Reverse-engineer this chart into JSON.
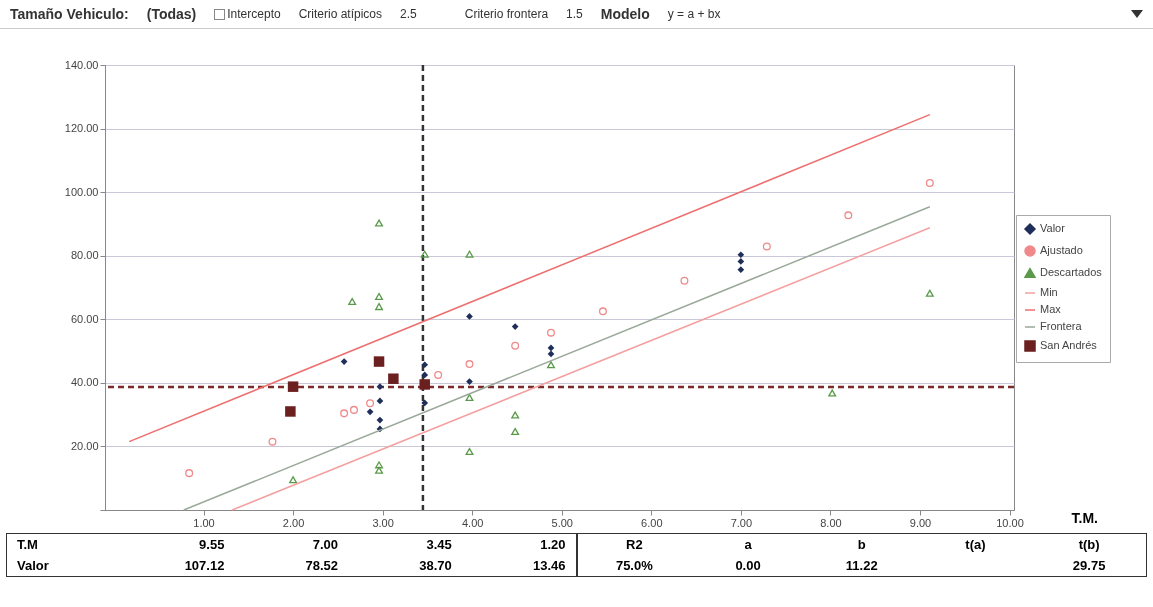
{
  "chart_data": {
    "type": "scatter",
    "annotations": [
      "Tamaño Vehiculo:",
      "(Todas)",
      "Intercepto",
      "Criterio atípicos",
      "2.5",
      "Criterio frontera",
      "1.5",
      "Modelo",
      "y = a + bx",
      "T.M",
      "9.55",
      "7.00",
      "3.45",
      "1.20",
      "Valor",
      "107.12",
      "78.52",
      "38.70",
      "13.46",
      "R2",
      "a",
      "b",
      "t(a)",
      "t(b)",
      "75.0%",
      "0.00",
      "11.22",
      "29.75"
    ],
    "xlabel": "T.M.",
    "xlim": [
      -0.1,
      10.05
    ],
    "xticks": [
      {
        "value": 1,
        "label": "1.00"
      },
      {
        "value": 2,
        "label": "2.00"
      },
      {
        "value": 3,
        "label": "3.00"
      },
      {
        "value": 4,
        "label": "4.00"
      },
      {
        "value": 5,
        "label": "5.00"
      },
      {
        "value": 6,
        "label": "6.00"
      },
      {
        "value": 7,
        "label": "7.00"
      },
      {
        "value": 8,
        "label": "8.00"
      },
      {
        "value": 9,
        "label": "9.00"
      },
      {
        "value": 10,
        "label": "10.00"
      }
    ],
    "ylim": [
      0,
      140
    ],
    "yticks": [
      {
        "value": 0,
        "label": null
      },
      {
        "value": 20,
        "label": "20.00"
      },
      {
        "value": 40,
        "label": "40.00"
      },
      {
        "value": 60,
        "label": "60.00"
      },
      {
        "value": 80,
        "label": "80.00"
      },
      {
        "value": 100,
        "label": "100.00"
      },
      {
        "value": 120,
        "label": "120.00"
      },
      {
        "value": 140,
        "label": "140.00"
      }
    ],
    "grid": "y",
    "legend": "right",
    "ref_lines": [
      {
        "axis": "x",
        "value": 3.45,
        "color": "#333333",
        "line_style": "dashed"
      },
      {
        "axis": "y",
        "value": 38.7,
        "color": "#7b2b2b",
        "line_style": "dashed"
      }
    ],
    "series": [
      {
        "name": "Valor",
        "marker": "diamond",
        "color": "#1f2f5a",
        "x": [
          2.57,
          2.97,
          2.97,
          2.86,
          2.97,
          2.97,
          3.47,
          3.47,
          3.47,
          3.97,
          4.48,
          4.88,
          4.88,
          3.97,
          7.0,
          7.0,
          7.0
        ],
        "values": [
          46.7,
          38.8,
          34.3,
          30.9,
          28.3,
          25.5,
          45.7,
          42.5,
          33.7,
          60.9,
          57.7,
          51.0,
          49.1,
          40.4,
          75.6,
          78.2,
          80.3
        ]
      },
      {
        "name": "Ajustado",
        "marker": "circle",
        "color": "#f08a8a",
        "x": [
          0.84,
          1.77,
          2.57,
          2.68,
          2.86,
          3.62,
          3.97,
          4.48,
          4.88,
          5.46,
          6.37,
          7.29,
          8.2,
          9.11
        ],
        "values": [
          11.6,
          21.5,
          30.4,
          31.5,
          33.6,
          42.5,
          45.9,
          51.7,
          55.8,
          62.5,
          72.1,
          82.9,
          92.7,
          102.9
        ]
      },
      {
        "name": "Descartados",
        "marker": "triangle",
        "color": "#5a9a4a",
        "x": [
          2.96,
          3.47,
          3.97,
          2.66,
          2.96,
          2.96,
          2.96,
          2.96,
          2.0,
          3.97,
          4.48,
          4.48,
          4.88,
          3.97,
          9.11,
          8.02
        ],
        "values": [
          90.3,
          80.5,
          80.5,
          65.6,
          67.2,
          64.0,
          14.2,
          12.5,
          9.5,
          18.4,
          29.9,
          24.7,
          45.7,
          35.4,
          68.2,
          36.8
        ]
      },
      {
        "name": "Min",
        "type": "line",
        "color": "#f4a0a0",
        "x": [
          1.32,
          9.11
        ],
        "values": [
          0,
          88.8
        ]
      },
      {
        "name": "Max",
        "type": "line",
        "color": "#ee6e6e",
        "x": [
          0.17,
          9.11
        ],
        "values": [
          21.5,
          124.4
        ]
      },
      {
        "name": "Frontera",
        "type": "line",
        "color": "#9aa89a",
        "x": [
          0.78,
          9.11
        ],
        "values": [
          0,
          95.4
        ]
      },
      {
        "name": "San Andrés",
        "marker": "square",
        "color": "#6b1f1f",
        "x": [
          1.97,
          2.0,
          2.96,
          3.12,
          3.47
        ],
        "values": [
          31.0,
          38.8,
          46.7,
          41.3,
          39.5
        ]
      }
    ]
  }
}
